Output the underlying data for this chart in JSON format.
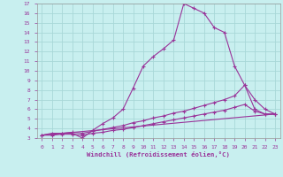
{
  "xlabel": "Windchill (Refroidissement éolien,°C)",
  "xlim": [
    -0.5,
    23.5
  ],
  "ylim": [
    3,
    17
  ],
  "yticks": [
    3,
    4,
    5,
    6,
    7,
    8,
    9,
    10,
    11,
    12,
    13,
    14,
    15,
    16,
    17
  ],
  "xticks": [
    0,
    1,
    2,
    3,
    4,
    5,
    6,
    7,
    8,
    9,
    10,
    11,
    12,
    13,
    14,
    15,
    16,
    17,
    18,
    19,
    20,
    21,
    22,
    23
  ],
  "background_color": "#c8efef",
  "line_color": "#993399",
  "grid_color": "#a8d8d8",
  "series": [
    {
      "x": [
        0,
        1,
        2,
        3,
        4,
        5,
        6,
        7,
        8,
        9,
        10,
        11,
        12,
        13,
        14,
        15,
        16,
        17,
        18,
        19,
        20,
        21,
        22,
        23
      ],
      "y": [
        3.3,
        3.5,
        3.5,
        3.5,
        3.0,
        3.8,
        4.5,
        5.1,
        6.0,
        8.2,
        10.5,
        11.5,
        12.3,
        13.2,
        17.0,
        16.5,
        16.0,
        14.5,
        14.0,
        10.5,
        8.5,
        6.0,
        5.5,
        5.5
      ],
      "has_marker": true
    },
    {
      "x": [
        0,
        1,
        2,
        3,
        4,
        5,
        6,
        7,
        8,
        9,
        10,
        11,
        12,
        13,
        14,
        15,
        16,
        17,
        18,
        19,
        20,
        21,
        22,
        23
      ],
      "y": [
        3.3,
        3.4,
        3.5,
        3.6,
        3.5,
        3.7,
        3.9,
        4.1,
        4.3,
        4.6,
        4.8,
        5.1,
        5.3,
        5.6,
        5.8,
        6.1,
        6.4,
        6.7,
        7.0,
        7.4,
        8.5,
        7.0,
        6.0,
        5.5
      ],
      "has_marker": true
    },
    {
      "x": [
        0,
        1,
        2,
        3,
        4,
        5,
        6,
        7,
        8,
        9,
        10,
        11,
        12,
        13,
        14,
        15,
        16,
        17,
        18,
        19,
        20,
        21,
        22,
        23
      ],
      "y": [
        3.3,
        3.3,
        3.4,
        3.4,
        3.3,
        3.5,
        3.6,
        3.8,
        3.9,
        4.1,
        4.3,
        4.5,
        4.7,
        4.9,
        5.1,
        5.3,
        5.5,
        5.7,
        5.9,
        6.2,
        6.5,
        5.8,
        5.5,
        5.5
      ],
      "has_marker": true
    },
    {
      "x": [
        0,
        23
      ],
      "y": [
        3.3,
        5.5
      ],
      "has_marker": false
    }
  ]
}
